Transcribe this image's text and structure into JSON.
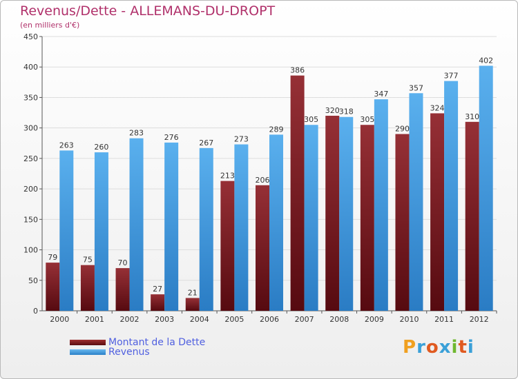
{
  "header": {
    "title": "Revenus/Dette - ALLEMANS-DU-DROPT",
    "subtitle": "(en milliers d'€)"
  },
  "legend": {
    "debt_label": "Montant de la Dette",
    "revenue_label": "Revenus"
  },
  "logo": {
    "text": "Proxiti",
    "letters": [
      "P",
      "r",
      "o",
      "x",
      "i",
      "t",
      "i"
    ],
    "letter_colors": [
      "#f0a020",
      "#3aa0d8",
      "#e05a20",
      "#3aa0d8",
      "#70b830",
      "#e05a20",
      "#3aa0d8"
    ]
  },
  "colors": {
    "debt": "#7a1f22",
    "revenue": "#4aa0e0",
    "axis_text": "#333333",
    "grid": "#dddddd"
  },
  "chart_data": {
    "type": "bar",
    "title": "Revenus/Dette - ALLEMANS-DU-DROPT",
    "subtitle": "(en milliers d'€)",
    "xlabel": "",
    "ylabel": "",
    "ylim": [
      0,
      450
    ],
    "yticks": [
      0,
      50,
      100,
      150,
      200,
      250,
      300,
      350,
      400,
      450
    ],
    "grid": true,
    "legend_position": "bottom-left",
    "categories": [
      "2000",
      "2001",
      "2002",
      "2003",
      "2004",
      "2005",
      "2006",
      "2007",
      "2008",
      "2009",
      "2010",
      "2011",
      "2012"
    ],
    "series": [
      {
        "name": "Montant de la Dette",
        "color": "#7a1f22",
        "values": [
          79,
          75,
          70,
          27,
          21,
          213,
          206,
          386,
          320,
          305,
          290,
          324,
          310
        ]
      },
      {
        "name": "Revenus",
        "color": "#4aa0e0",
        "values": [
          263,
          260,
          283,
          276,
          267,
          273,
          289,
          305,
          318,
          347,
          357,
          377,
          402
        ]
      }
    ]
  }
}
